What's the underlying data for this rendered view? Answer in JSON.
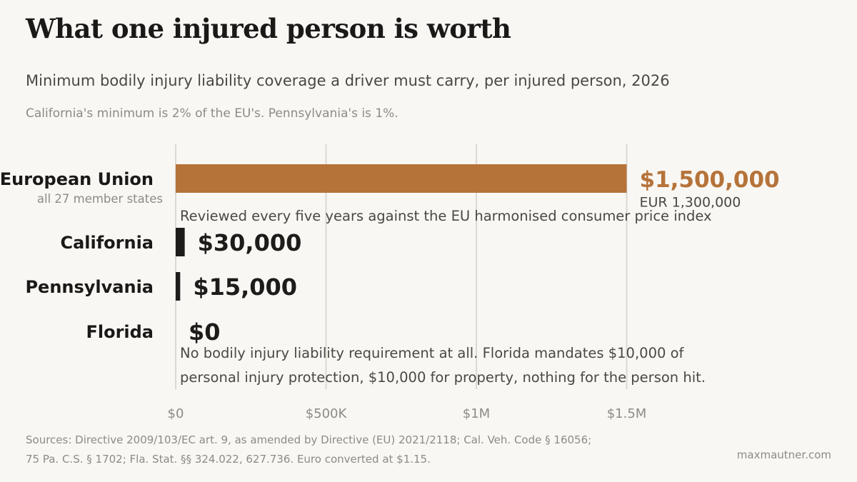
{
  "header": {
    "title": "What one injured person is worth",
    "subtitle": "Minimum bodily injury liability coverage a driver must carry, per injured person, 2026",
    "note": "California's minimum is 2% of the EU's. Pennsylvania's is 1%."
  },
  "chart_data": {
    "type": "bar",
    "orientation": "horizontal",
    "categories": [
      "European Union",
      "California",
      "Pennsylvania",
      "Florida"
    ],
    "category_sublabels": [
      "all 27 member states",
      "",
      "",
      ""
    ],
    "values": [
      1500000,
      30000,
      15000,
      0
    ],
    "value_labels": [
      "$1,500,000",
      "$30,000",
      "$15,000",
      "$0"
    ],
    "secondary_value_labels": [
      "EUR 1,300,000",
      "",
      "",
      ""
    ],
    "annotations": [
      [
        "Reviewed every five years against the EU harmonised consumer price index"
      ],
      [],
      [],
      [
        "No bodily injury liability requirement at all. Florida mandates $10,000 of",
        "personal injury protection, $10,000 for property, nothing for the person hit."
      ]
    ],
    "xlim": [
      0,
      1750000
    ],
    "x_ticks": [
      0,
      500000,
      1000000,
      1500000
    ],
    "x_tick_labels": [
      "$0",
      "$500K",
      "$1M",
      "$1.5M"
    ],
    "grid": true,
    "colors": {
      "highlight": "#b5733a",
      "default": "#1e1c1a",
      "grid": "#dcd8d2",
      "axis_text": "#8e8a86",
      "annotation_text": "#4a4744"
    }
  },
  "footer": {
    "sources_line1": "Sources: Directive 2009/103/EC art. 9, as amended by Directive (EU) 2021/2118; Cal. Veh. Code § 16056;",
    "sources_line2": "75 Pa. C.S. § 1702; Fla. Stat. §§ 324.022, 627.736. Euro converted at $1.15.",
    "brand": "maxmautner.com"
  }
}
